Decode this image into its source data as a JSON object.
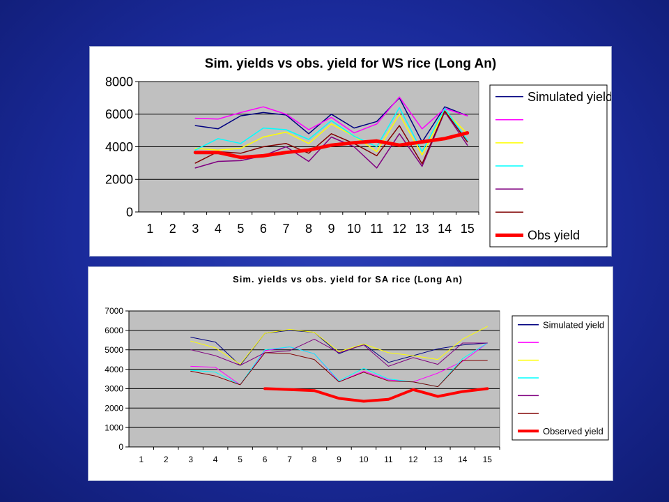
{
  "colors": {
    "background": "#1c2ca0",
    "plot_area": "#c0c0c0",
    "simulated": "#000080",
    "magenta": "#ff00ff",
    "yellow": "#ffff00",
    "cyan": "#00ffff",
    "purple": "#800080",
    "darkred": "#800000",
    "observed": "#ff0000"
  },
  "chart_data": [
    {
      "type": "line",
      "title": "Sim. yields vs obs. yield for WS rice (Long An)",
      "xlabel": "",
      "ylabel": "",
      "categories": [
        "1",
        "2",
        "3",
        "4",
        "5",
        "6",
        "7",
        "8",
        "9",
        "10",
        "11",
        "12",
        "13",
        "14",
        "15"
      ],
      "yticks": [
        "0",
        "2000",
        "4000",
        "6000",
        "8000"
      ],
      "ylim": [
        0,
        8000
      ],
      "grid": true,
      "legend_position": "right",
      "series": [
        {
          "name": "Simulated yield",
          "color": "#000080",
          "width": 1.5,
          "values": [
            null,
            null,
            5300,
            5100,
            5900,
            6100,
            5950,
            4800,
            6000,
            5150,
            5550,
            7000,
            4300,
            6450,
            5900
          ]
        },
        {
          "name": "",
          "color": "#ff00ff",
          "width": 1.5,
          "values": [
            null,
            null,
            5750,
            5700,
            6100,
            6450,
            6000,
            5050,
            5800,
            4850,
            5400,
            7050,
            5100,
            6350,
            5900
          ]
        },
        {
          "name": "",
          "color": "#ffff00",
          "width": 1.5,
          "values": [
            null,
            null,
            3900,
            3800,
            3900,
            4600,
            4900,
            4200,
            5400,
            4650,
            3700,
            6000,
            3500,
            6200,
            4800
          ]
        },
        {
          "name": "",
          "color": "#00ffff",
          "width": 1.5,
          "values": [
            null,
            null,
            3800,
            4500,
            4200,
            5150,
            5050,
            4450,
            5600,
            4650,
            4000,
            6400,
            3700,
            6350,
            4400
          ]
        },
        {
          "name": "",
          "color": "#800080",
          "width": 1.5,
          "values": [
            null,
            null,
            2700,
            3100,
            3150,
            3450,
            4000,
            3100,
            4600,
            4000,
            2700,
            4800,
            2800,
            6150,
            4100
          ]
        },
        {
          "name": "",
          "color": "#800000",
          "width": 1.5,
          "values": [
            null,
            null,
            3000,
            3700,
            3600,
            4000,
            4200,
            3600,
            4800,
            4200,
            3450,
            5300,
            2950,
            6200,
            4300
          ]
        },
        {
          "name": "Obs yield",
          "color": "#ff0000",
          "width": 5,
          "values": [
            null,
            null,
            3650,
            3650,
            3350,
            3450,
            3650,
            3800,
            4100,
            4250,
            4350,
            4100,
            4300,
            4500,
            4850
          ]
        }
      ]
    },
    {
      "type": "line",
      "title": "Sim. yields vs obs. yield for SA rice (Long An)",
      "xlabel": "",
      "ylabel": "",
      "categories": [
        "1",
        "2",
        "3",
        "4",
        "5",
        "6",
        "7",
        "8",
        "9",
        "10",
        "11",
        "12",
        "13",
        "14",
        "15"
      ],
      "yticks": [
        "0",
        "1000",
        "2000",
        "3000",
        "4000",
        "5000",
        "6000",
        "7000"
      ],
      "ylim": [
        0,
        7000
      ],
      "grid": true,
      "legend_position": "right",
      "series": [
        {
          "name": "Simulated yield",
          "color": "#000080",
          "width": 1,
          "values": [
            null,
            null,
            5650,
            5400,
            4200,
            5850,
            6000,
            5900,
            4800,
            5300,
            4350,
            4700,
            5050,
            5250,
            5350
          ]
        },
        {
          "name": "",
          "color": "#ff00ff",
          "width": 1,
          "values": [
            null,
            null,
            4150,
            4100,
            3200,
            4950,
            5150,
            4800,
            3350,
            3900,
            3450,
            3350,
            3800,
            4400,
            5350
          ]
        },
        {
          "name": "",
          "color": "#ffff00",
          "width": 1,
          "values": [
            null,
            null,
            5450,
            5100,
            4250,
            5850,
            6050,
            5900,
            4900,
            5300,
            4850,
            4700,
            4500,
            5550,
            6200
          ]
        },
        {
          "name": "",
          "color": "#00ffff",
          "width": 1,
          "values": [
            null,
            null,
            3950,
            3850,
            3200,
            5000,
            5150,
            4800,
            3400,
            4050,
            3500,
            3350,
            3100,
            4550,
            5350
          ]
        },
        {
          "name": "",
          "color": "#800080",
          "width": 1,
          "values": [
            null,
            null,
            5000,
            4700,
            4200,
            4850,
            4950,
            5550,
            4850,
            5250,
            4150,
            4600,
            4250,
            5350,
            5350
          ]
        },
        {
          "name": "",
          "color": "#800000",
          "width": 1,
          "values": [
            null,
            null,
            3900,
            3650,
            3200,
            4850,
            4800,
            4500,
            3350,
            3850,
            3400,
            3350,
            3100,
            4450,
            4450
          ]
        },
        {
          "name": "Observed yield",
          "color": "#ff0000",
          "width": 4,
          "values": [
            null,
            null,
            null,
            null,
            null,
            3000,
            2950,
            2900,
            2500,
            2350,
            2450,
            2950,
            2600,
            2850,
            3000
          ]
        }
      ]
    }
  ]
}
